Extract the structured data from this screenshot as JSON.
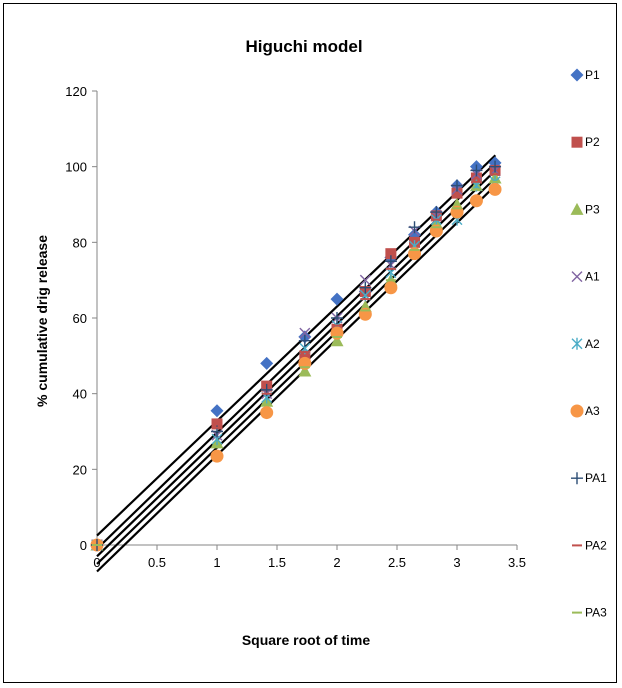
{
  "chart_data": {
    "type": "scatter",
    "title": "Higuchi model",
    "xlabel": "Square root of time",
    "ylabel": "% cumulative drig release",
    "xlim": [
      0,
      3.5
    ],
    "ylim": [
      0,
      120
    ],
    "x_ticks": [
      "0",
      "0.5",
      "1",
      "1.5",
      "2",
      "2.5",
      "3",
      "3.5"
    ],
    "y_ticks": [
      "0",
      "20",
      "40",
      "60",
      "80",
      "100",
      "120"
    ],
    "x": [
      0,
      1,
      1.414,
      1.732,
      2,
      2.236,
      2.449,
      2.646,
      2.828,
      3,
      3.162,
      3.317
    ],
    "grid": false,
    "legend_position": "right",
    "series": [
      {
        "name": "P1",
        "color": "#4472C4",
        "marker": "diamond",
        "values": [
          0,
          35.5,
          48,
          55,
          65,
          67,
          76,
          82,
          88,
          95,
          100,
          101
        ]
      },
      {
        "name": "P2",
        "color": "#C0504D",
        "marker": "square",
        "values": [
          0,
          32,
          42,
          50,
          57,
          67,
          77,
          80,
          87,
          93,
          97,
          99
        ]
      },
      {
        "name": "P3",
        "color": "#9BBB59",
        "marker": "triangle",
        "values": [
          0,
          27,
          38,
          46,
          54,
          63,
          70,
          78,
          85,
          90,
          95,
          97
        ]
      },
      {
        "name": "A1",
        "color": "#8064A2",
        "marker": "x",
        "values": [
          0,
          29,
          40,
          56,
          60,
          70,
          74,
          83,
          87,
          94,
          98,
          99
        ]
      },
      {
        "name": "A2",
        "color": "#4BACC6",
        "marker": "star",
        "values": [
          0,
          28,
          39,
          52,
          58,
          66,
          72,
          79,
          86,
          86,
          95,
          96
        ]
      },
      {
        "name": "A3",
        "color": "#F79646",
        "marker": "circle",
        "values": [
          0,
          23.5,
          35,
          48,
          56,
          61,
          68,
          77,
          83,
          88,
          91,
          94
        ]
      },
      {
        "name": "PA1",
        "color": "#2C4D75",
        "marker": "plus",
        "values": [
          0,
          30,
          41,
          54,
          60,
          68,
          75,
          84,
          88,
          95,
          99,
          100
        ]
      },
      {
        "name": "PA2",
        "color": "#C0504D",
        "marker": "dash",
        "values": [
          0,
          31,
          40,
          51,
          58,
          65,
          73,
          81,
          86,
          92,
          96,
          98
        ]
      },
      {
        "name": "PA3",
        "color": "#9BBB59",
        "marker": "dash",
        "values": [
          0,
          26,
          37,
          47,
          55,
          62,
          70,
          78,
          84,
          89,
          94,
          96
        ]
      }
    ],
    "trendlines": [
      {
        "type": "linear",
        "color": "#000000",
        "endpoints": [
          [
            0,
            2.5
          ],
          [
            3.32,
            103
          ]
        ]
      },
      {
        "type": "linear",
        "color": "#000000",
        "endpoints": [
          [
            0,
            -1
          ],
          [
            3.32,
            101
          ]
        ]
      },
      {
        "type": "linear",
        "color": "#000000",
        "endpoints": [
          [
            0,
            -3
          ],
          [
            3.32,
            99
          ]
        ]
      },
      {
        "type": "linear",
        "color": "#000000",
        "endpoints": [
          [
            0,
            -5
          ],
          [
            3.32,
            97
          ]
        ]
      },
      {
        "type": "linear",
        "color": "#000000",
        "endpoints": [
          [
            0,
            -7
          ],
          [
            3.32,
            95
          ]
        ]
      }
    ]
  }
}
